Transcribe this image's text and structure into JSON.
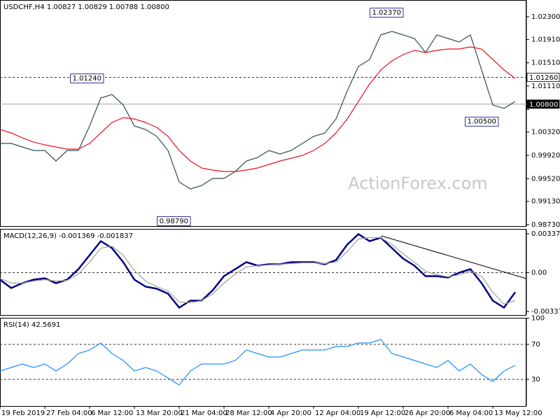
{
  "chart_data": [
    {
      "type": "line",
      "title": "USDCHF,H4  1.00827 1.00829 1.00788 1.00800",
      "watermark": "ActionForex.com",
      "x": [
        0,
        4,
        8,
        12,
        16,
        20,
        24,
        28,
        32,
        36,
        40,
        44,
        48,
        52,
        56,
        60,
        64,
        68,
        72,
        76,
        80,
        84,
        88,
        92,
        96,
        100,
        104,
        108,
        112,
        116,
        120,
        124,
        128,
        132,
        136,
        140,
        144,
        148,
        152,
        156,
        160,
        164,
        168,
        172,
        176,
        180,
        184
      ],
      "xlim": [
        0,
        188
      ],
      "ylim": [
        0.98706,
        1.02588
      ],
      "yticks": [
        {
          "value": 1.023,
          "label": "1.02300"
        },
        {
          "value": 1.0191,
          "label": "1.01910"
        },
        {
          "value": 1.0151,
          "label": "1.01510"
        },
        {
          "value": 1.0111,
          "label": "1.01110"
        },
        {
          "value": 1.0071,
          "label": "1.00710"
        },
        {
          "value": 1.0032,
          "label": "1.00320"
        },
        {
          "value": 0.9992,
          "label": "0.99920"
        },
        {
          "value": 0.9952,
          "label": "0.99520"
        },
        {
          "value": 0.9913,
          "label": "0.99130"
        },
        {
          "value": 0.9873,
          "label": "0.98730"
        }
      ],
      "series": [
        {
          "name": "USDCHF",
          "color": "#2f4f4f",
          "values": [
            1.00125,
            1.00125,
            1.00064,
            1.00004,
            1.00004,
            0.99824,
            1.00004,
            1.00004,
            1.00425,
            1.00906,
            1.00966,
            1.00786,
            1.00425,
            1.00365,
            1.00245,
            1.00004,
            0.99464,
            0.99343,
            0.99403,
            0.99524,
            0.99524,
            0.99644,
            0.99824,
            0.99884,
            1.00004,
            0.99944,
            1.00004,
            1.00125,
            1.00245,
            1.00305,
            1.00545,
            1.01026,
            1.01447,
            1.01567,
            1.01988,
            1.02048,
            1.01988,
            1.01927,
            1.01687,
            1.01988,
            1.01927,
            1.01867,
            1.01988,
            1.01387,
            1.00786,
            1.00726,
            1.00846
          ]
        },
        {
          "name": "MA",
          "color": "#e8141a",
          "values": [
            1.00365,
            1.00305,
            1.00221,
            1.00149,
            1.00101,
            1.00064,
            1.00028,
            1.00028,
            1.00125,
            1.00305,
            1.00485,
            1.00569,
            1.00545,
            1.00485,
            1.00401,
            1.00245,
            1.00004,
            0.99824,
            0.99704,
            0.99668,
            0.99644,
            0.99644,
            0.99668,
            0.99704,
            0.99764,
            0.99824,
            0.99872,
            0.9992,
            1.00004,
            1.00125,
            1.00305,
            1.00545,
            1.00846,
            1.01146,
            1.01387,
            1.01543,
            1.01651,
            1.01723,
            1.01687,
            1.01723,
            1.01747,
            1.01747,
            1.01783,
            1.01747,
            1.01567,
            1.01387,
            1.01242
          ]
        }
      ],
      "levels": [
        {
          "value": 1.0126,
          "label": "1.01260",
          "style": "dashed"
        },
        {
          "value": 1.008,
          "label": "1.00800",
          "style": "current"
        }
      ],
      "annotations": [
        {
          "label": "1.01240",
          "value": 1.0124,
          "x": 37,
          "side": "left"
        },
        {
          "label": "0.98790",
          "value": 0.9879,
          "x": 68,
          "side": "left"
        },
        {
          "label": "1.02370",
          "value": 1.0237,
          "x": 144,
          "side": "left"
        },
        {
          "label": "1.00500",
          "value": 1.005,
          "x": 178,
          "side": "left"
        }
      ]
    },
    {
      "type": "line",
      "title": "MACD(12,26,9) -0.001369 -0.001837",
      "x": [
        0,
        4,
        8,
        12,
        16,
        20,
        24,
        28,
        32,
        36,
        40,
        44,
        48,
        52,
        56,
        60,
        64,
        68,
        72,
        76,
        80,
        84,
        88,
        92,
        96,
        100,
        104,
        108,
        112,
        116,
        120,
        124,
        128,
        132,
        136,
        140,
        144,
        148,
        152,
        156,
        160,
        164,
        168,
        172,
        176,
        180,
        184
      ],
      "xlim": [
        0,
        188
      ],
      "ylim": [
        -0.003677,
        0.003803
      ],
      "yticks": [
        0.003377,
        {
          "value": 0,
          "label": "0.00"
        },
        -0.003373
      ],
      "levels": [
        0
      ],
      "series": [
        {
          "name": "MACD",
          "color": "#000080",
          "values": [
            -0.000608,
            -0.001338,
            -0.000912,
            -0.000608,
            -0.000487,
            -0.000912,
            -0.000608,
            0.000304,
            0.00152,
            0.002737,
            0.002128,
            0.000912,
            -0.000608,
            -0.001216,
            -0.001399,
            -0.001824,
            -0.003041,
            -0.002432,
            -0.002432,
            -0.00152,
            -0.000304,
            0.000304,
            0.000912,
            0.000608,
            0.00073,
            0.00073,
            0.000912,
            0.000912,
            0.000912,
            0.00073,
            0.001095,
            0.002432,
            0.003345,
            0.002737,
            0.003041,
            0.002128,
            0.001216,
            0.000608,
            -0.000304,
            -0.000304,
            -0.000426,
            0,
            0.000304,
            -0.000912,
            -0.002432,
            -0.003041,
            -0.001703
          ]
        },
        {
          "name": "Signal",
          "color": "#a0a0a0",
          "values": [
            -0.000487,
            -0.000912,
            -0.000912,
            -0.00073,
            -0.000608,
            -0.00073,
            -0.000669,
            -0.000122,
            0.000912,
            0.002128,
            0.002311,
            0.00152,
            0.000182,
            -0.00073,
            -0.001216,
            -0.001581,
            -0.002554,
            -0.002615,
            -0.002432,
            -0.001824,
            -0.000912,
            -0.000122,
            0.000486,
            0.000608,
            0.000669,
            0.00073,
            0.000791,
            0.000851,
            0.000851,
            0.000791,
            0.000912,
            0.001824,
            0.002919,
            0.003041,
            0.003041,
            0.002432,
            0.001642,
            0.000912,
            0.000122,
            -0.000182,
            -0.000365,
            -0.000182,
            0.000122,
            -0.000304,
            -0.001703,
            -0.002737,
            -0.002432
          ]
        }
      ]
    },
    {
      "type": "line",
      "title": "RSI(14) 42.5691",
      "x": [
        0,
        4,
        8,
        12,
        16,
        20,
        24,
        28,
        32,
        36,
        40,
        44,
        48,
        52,
        56,
        60,
        64,
        68,
        72,
        76,
        80,
        84,
        88,
        92,
        96,
        100,
        104,
        108,
        112,
        116,
        120,
        124,
        128,
        132,
        136,
        140,
        144,
        148,
        152,
        156,
        160,
        164,
        168,
        172,
        176,
        180,
        184
      ],
      "xlim": [
        0,
        188
      ],
      "xticks": [
        {
          "value": 0,
          "label": "19 Feb 2019"
        },
        {
          "value": 16,
          "label": "27 Feb 04:00"
        },
        {
          "value": 32,
          "label": "6 Mar 12:00"
        },
        {
          "value": 48,
          "label": "13 Mar 20:00"
        },
        {
          "value": 64,
          "label": "21 Mar 04:00"
        },
        {
          "value": 80,
          "label": "28 Mar 12:00"
        },
        {
          "value": 96,
          "label": "4 Apr 20:00"
        },
        {
          "value": 112,
          "label": "12 Apr 04:00"
        },
        {
          "value": 128,
          "label": "19 Apr 12:00"
        },
        {
          "value": 144,
          "label": "26 Apr 20:00"
        },
        {
          "value": 160,
          "label": "6 May 04:00"
        },
        {
          "value": 176,
          "label": "13 May 12:00"
        }
      ],
      "ylim": [
        -0.4,
        100.4
      ],
      "yticks": [
        100,
        70,
        30
      ],
      "levels": [
        70,
        30
      ],
      "series": [
        {
          "name": "RSI",
          "color": "#1e90ff",
          "values": [
            39.6,
            43.6,
            47.6,
            43.6,
            47.6,
            39.6,
            47.6,
            59.6,
            63.6,
            71.6,
            59.6,
            51.6,
            39.6,
            43.6,
            39.6,
            31.6,
            23.6,
            39.6,
            47.6,
            47.6,
            47.6,
            51.6,
            63.6,
            59.6,
            55.6,
            55.6,
            59.6,
            63.6,
            63.6,
            63.6,
            67.6,
            67.6,
            71.6,
            71.6,
            75.6,
            59.6,
            55.6,
            51.6,
            47.6,
            43.6,
            51.6,
            39.6,
            47.6,
            35.6,
            27.6,
            39.6,
            46
          ]
        }
      ]
    }
  ]
}
